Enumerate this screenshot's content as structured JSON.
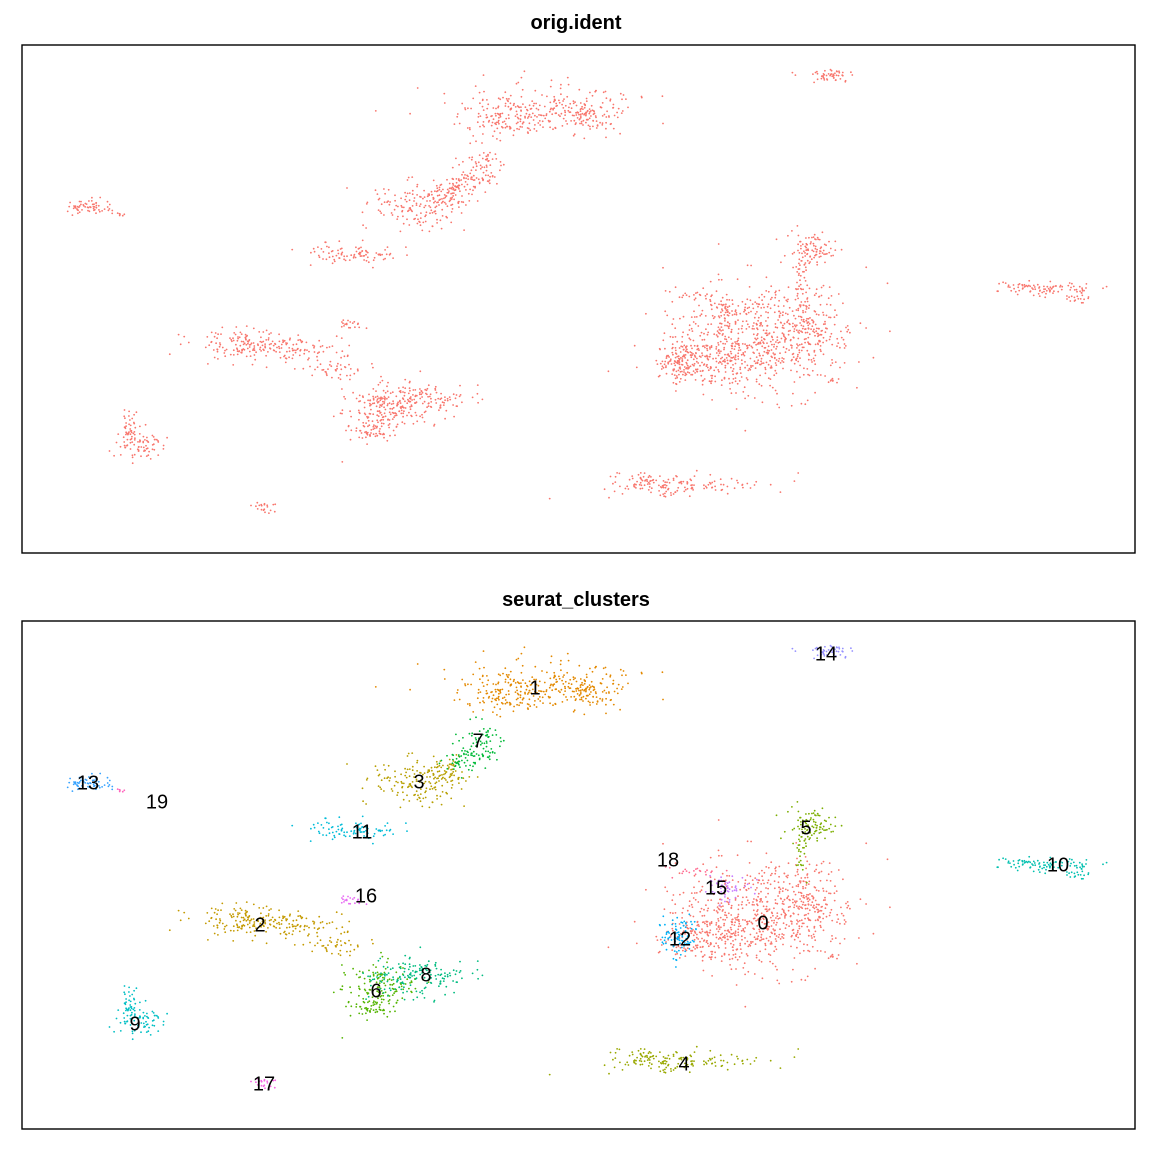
{
  "chart_data": [
    {
      "type": "scatter",
      "title": "orig.ident",
      "color_by": "orig.ident",
      "axes_visible": false,
      "grid": false,
      "legend": "none",
      "series": [
        {
          "color": "#F8766D",
          "regions": "all"
        }
      ]
    },
    {
      "type": "scatter",
      "title": "seurat_clusters",
      "color_by": "seurat_clusters",
      "axes_visible": false,
      "grid": false,
      "legend": "none",
      "clusters": [
        {
          "label": "0",
          "color": "#F8766D",
          "n": 900
        },
        {
          "label": "1",
          "color": "#E38900",
          "n": 380
        },
        {
          "label": "2",
          "color": "#C49A00",
          "n": 260
        },
        {
          "label": "3",
          "color": "#B79F00",
          "n": 200
        },
        {
          "label": "4",
          "color": "#99A800",
          "n": 160
        },
        {
          "label": "5",
          "color": "#7CAE00",
          "n": 120
        },
        {
          "label": "6",
          "color": "#53B400",
          "n": 180
        },
        {
          "label": "7",
          "color": "#00BA38",
          "n": 120
        },
        {
          "label": "8",
          "color": "#00BC80",
          "n": 170
        },
        {
          "label": "9",
          "color": "#00BFC4",
          "n": 110
        },
        {
          "label": "10",
          "color": "#00C0AF",
          "n": 110
        },
        {
          "label": "11",
          "color": "#00BCD8",
          "n": 90
        },
        {
          "label": "12",
          "color": "#00B0F6",
          "n": 90
        },
        {
          "label": "13",
          "color": "#35A2FF",
          "n": 60
        },
        {
          "label": "14",
          "color": "#9590FF",
          "n": 50
        },
        {
          "label": "15",
          "color": "#C77CFF",
          "n": 50
        },
        {
          "label": "16",
          "color": "#E76BF3",
          "n": 20
        },
        {
          "label": "17",
          "color": "#F564E3",
          "n": 20
        },
        {
          "label": "18",
          "color": "#FF6C91",
          "n": 20
        },
        {
          "label": "19",
          "color": "#FF62BC",
          "n": 6
        }
      ]
    }
  ]
}
